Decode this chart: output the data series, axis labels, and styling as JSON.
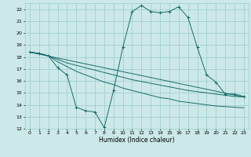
{
  "title": "",
  "xlabel": "Humidex (Indice chaleur)",
  "bg_color": "#cce8e8",
  "grid_color": "#99cccc",
  "line_color": "#1a6b6b",
  "xlim": [
    -0.5,
    23.5
  ],
  "ylim": [
    12,
    22.5
  ],
  "yticks": [
    12,
    13,
    14,
    15,
    16,
    17,
    18,
    19,
    20,
    21,
    22
  ],
  "xticks": [
    0,
    1,
    2,
    3,
    4,
    5,
    6,
    7,
    8,
    9,
    10,
    11,
    12,
    13,
    14,
    15,
    16,
    17,
    18,
    19,
    20,
    21,
    22,
    23
  ],
  "curves": [
    {
      "x": [
        0,
        1,
        2,
        3,
        4,
        5,
        6,
        7,
        8,
        9,
        10,
        11,
        12,
        13,
        14,
        15,
        16,
        17,
        18,
        19,
        20,
        21,
        22,
        23
      ],
      "y": [
        18.4,
        18.3,
        18.1,
        17.1,
        16.5,
        13.8,
        13.5,
        13.4,
        12.1,
        15.2,
        18.8,
        21.8,
        22.3,
        21.8,
        21.7,
        21.8,
        22.2,
        21.3,
        18.8,
        16.5,
        15.9,
        14.9,
        14.9,
        14.7
      ],
      "marker": "+"
    },
    {
      "x": [
        0,
        1,
        2,
        3,
        4,
        5,
        6,
        7,
        8,
        9,
        10,
        11,
        12,
        13,
        14,
        15,
        16,
        17,
        18,
        19,
        20,
        21,
        22,
        23
      ],
      "y": [
        18.4,
        18.3,
        18.1,
        17.8,
        17.5,
        17.3,
        17.1,
        16.9,
        16.7,
        16.5,
        16.3,
        16.1,
        15.95,
        15.8,
        15.65,
        15.5,
        15.35,
        15.2,
        15.1,
        15.0,
        14.9,
        14.8,
        14.7,
        14.65
      ],
      "marker": null
    },
    {
      "x": [
        0,
        1,
        2,
        3,
        4,
        5,
        6,
        7,
        8,
        9,
        10,
        11,
        12,
        13,
        14,
        15,
        16,
        17,
        18,
        19,
        20,
        21,
        22,
        23
      ],
      "y": [
        18.4,
        18.3,
        18.1,
        17.6,
        17.2,
        16.8,
        16.5,
        16.2,
        15.9,
        15.7,
        15.4,
        15.2,
        15.0,
        14.8,
        14.6,
        14.5,
        14.3,
        14.2,
        14.1,
        14.0,
        13.9,
        13.85,
        13.8,
        13.75
      ],
      "marker": null
    },
    {
      "x": [
        0,
        23
      ],
      "y": [
        18.4,
        14.65
      ],
      "marker": null
    }
  ]
}
